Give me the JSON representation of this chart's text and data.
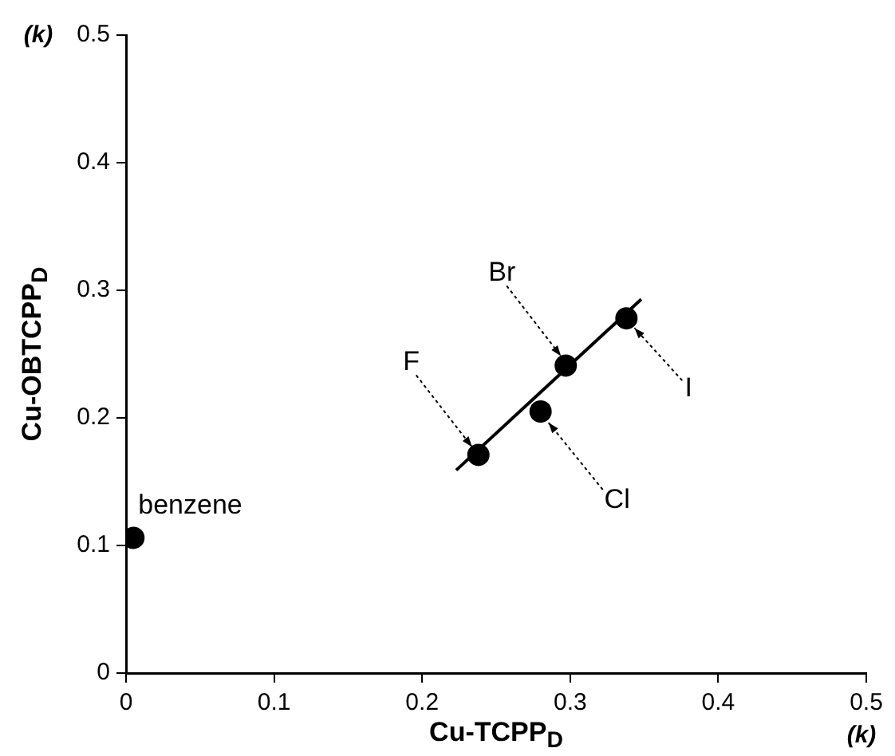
{
  "chart_data": {
    "type": "scatter",
    "xlabel": "Cu-TCPP$_{D}$",
    "ylabel": "Cu-OBTCPP$_{D}$",
    "x": [
      0.005,
      0.238,
      0.297,
      0.28,
      0.338
    ],
    "series": [
      {
        "color": "#000000",
        "marker": "circle",
        "values": [
          0.106,
          0.171,
          0.241,
          0.205,
          0.278
        ]
      },
      {
        "type": "line",
        "color": "#000000",
        "marker": "none",
        "x": [
          0.223,
          0.348
        ],
        "values": [
          0.159,
          0.293
        ]
      }
    ],
    "xlim": [
      0,
      0.5
    ],
    "ylim": [
      0,
      0.5
    ],
    "xticks": [
      0,
      0.1,
      0.2,
      0.3,
      0.4,
      0.5
    ],
    "yticks": [
      0,
      0.1,
      0.2,
      0.3,
      0.4,
      0.5
    ],
    "grid": false,
    "legend": false,
    "line_style": "solid",
    "annotations": [
      {
        "text": "benzene",
        "x": 0.005,
        "y": 0.106
      },
      {
        "text": "F",
        "x": 0.238,
        "y": 0.171
      },
      {
        "text": "Br",
        "x": 0.297,
        "y": 0.241
      },
      {
        "text": "Cl",
        "x": 0.28,
        "y": 0.205
      },
      {
        "text": "I",
        "x": 0.338,
        "y": 0.278
      },
      "(k)",
      "(k)"
    ]
  }
}
